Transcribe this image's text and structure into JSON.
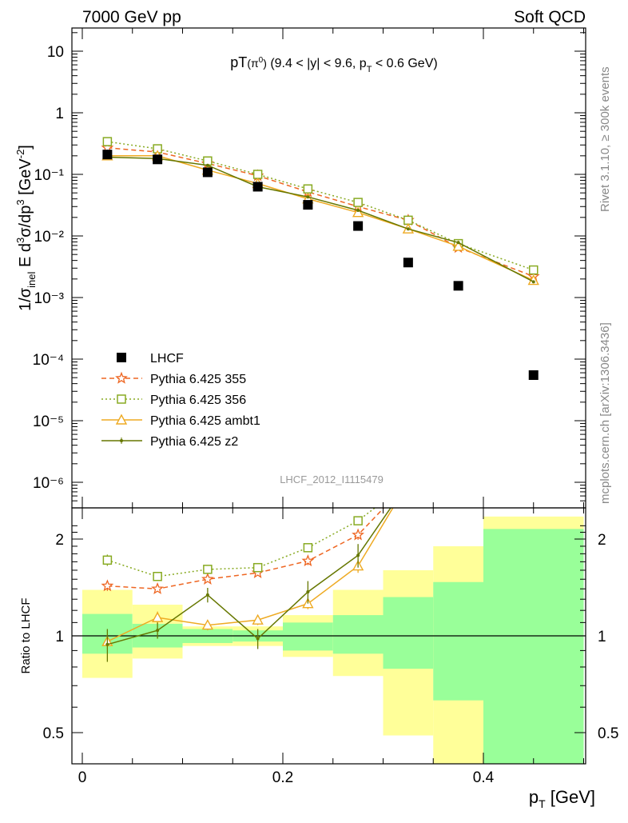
{
  "header": {
    "left": "7000 GeV pp",
    "right": "Soft QCD"
  },
  "side_labels": {
    "top": "Rivet 3.1.10, ≥ 300k events",
    "bottom": "mcplots.cern.ch [arXiv:1306.3436]"
  },
  "watermark": "LHCF_2012_I1115479",
  "chart_data": {
    "type": "scatter",
    "title": "pT(π⁰) (9.4 < |y| < 9.6, pT < 0.6 GeV)",
    "ylabel": "1/σinel E d³σ/dp³ [GeV⁻²]",
    "xlabel": "pT [GeV]",
    "ratio_ylabel": "Ratio to LHCF",
    "yscale": "log",
    "ylim": [
      5e-07,
      20
    ],
    "xlim": [
      -0.01,
      0.51
    ],
    "ratio_ylim": [
      0.42,
      2.3
    ],
    "legend_position": "lower-left",
    "x_ticks": [
      "0",
      "0.2",
      "0.4"
    ],
    "y_ticks": [
      "10⁻⁶",
      "10⁻⁵",
      "10⁻⁴",
      "10⁻³",
      "10⁻²",
      "10⁻¹",
      "1",
      "10"
    ],
    "ratio_ticks": [
      "0.5",
      "1",
      "2"
    ],
    "bin_edges": [
      0,
      0.05,
      0.1,
      0.15,
      0.2,
      0.25,
      0.3,
      0.35,
      0.4,
      0.5
    ],
    "x": [
      0.025,
      0.075,
      0.125,
      0.175,
      0.225,
      0.275,
      0.325,
      0.375,
      0.45
    ],
    "data": {
      "name": "LHCF",
      "values": [
        0.21,
        0.175,
        0.108,
        0.063,
        0.032,
        0.0145,
        0.0037,
        0.00155,
        5.5e-05
      ],
      "color": "#000000"
    },
    "uncertainty_bands": {
      "stat_green": [
        [
          0.88,
          1.17
        ],
        [
          0.92,
          1.09
        ],
        [
          0.95,
          1.05
        ],
        [
          0.96,
          1.04
        ],
        [
          0.9,
          1.1
        ],
        [
          0.88,
          1.16
        ],
        [
          0.79,
          1.32
        ],
        [
          0.63,
          1.47
        ],
        [
          0.4,
          2.15
        ]
      ],
      "total_yellow": [
        [
          0.74,
          1.39
        ],
        [
          0.85,
          1.25
        ],
        [
          0.93,
          1.07
        ],
        [
          0.93,
          1.07
        ],
        [
          0.86,
          1.16
        ],
        [
          0.75,
          1.39
        ],
        [
          0.49,
          1.6
        ],
        [
          0.4,
          1.9
        ],
        [
          0.4,
          2.35
        ]
      ],
      "green_color": "#99ff99",
      "yellow_color": "#ffff99"
    },
    "series": [
      {
        "name": "Pythia 6.425 355",
        "color": "#ee6622",
        "style": "dashed",
        "marker": "star",
        "values": [
          0.27,
          0.23,
          0.15,
          0.095,
          0.052,
          0.03,
          0.018,
          0.0065,
          0.0022
        ]
      },
      {
        "name": "Pythia 6.425 356",
        "color": "#88aa22",
        "style": "dotted",
        "marker": "square",
        "values": [
          0.34,
          0.26,
          0.165,
          0.1,
          0.058,
          0.035,
          0.018,
          0.0075,
          0.0028
        ]
      },
      {
        "name": "Pythia 6.425 ambt1",
        "color": "#eeaa22",
        "style": "solid",
        "marker": "triangle",
        "values": [
          0.2,
          0.2,
          0.117,
          0.071,
          0.04,
          0.024,
          0.013,
          0.0068,
          0.0019
        ]
      },
      {
        "name": "Pythia 6.425 z2",
        "color": "#667700",
        "style": "solid",
        "marker": "dot",
        "values": [
          0.19,
          0.18,
          0.14,
          0.063,
          0.043,
          0.026,
          0.013,
          0.0078,
          0.0018
        ]
      }
    ],
    "ratios": [
      {
        "name": "Pythia 6.425 355",
        "values": [
          1.43,
          1.4,
          1.5,
          1.57,
          1.71,
          2.06,
          3.0,
          3.0,
          3.0
        ],
        "err": [
          0.05,
          0.03,
          0.03,
          0.03,
          0.05,
          0.07,
          0,
          0,
          0
        ]
      },
      {
        "name": "Pythia 6.425 356",
        "values": [
          1.72,
          1.53,
          1.61,
          1.63,
          1.88,
          2.28,
          3.0,
          3.0,
          3.0
        ],
        "err": [
          0.07,
          0.04,
          0.04,
          0.04,
          0.05,
          0.07,
          0,
          0,
          0
        ]
      },
      {
        "name": "Pythia 6.425 ambt1",
        "values": [
          0.96,
          1.14,
          1.08,
          1.12,
          1.26,
          1.65,
          3.0,
          3.0,
          3.0
        ],
        "err": [
          0.05,
          0.05,
          0.04,
          0.04,
          0.05,
          0.08,
          0,
          0,
          0
        ]
      },
      {
        "name": "Pythia 6.425 z2",
        "values": [
          0.94,
          1.04,
          1.34,
          0.98,
          1.37,
          1.78,
          3.0,
          3.0,
          3.0
        ],
        "err": [
          0.11,
          0.06,
          0.07,
          0.07,
          0.11,
          0.15,
          0,
          0,
          0
        ]
      }
    ]
  }
}
